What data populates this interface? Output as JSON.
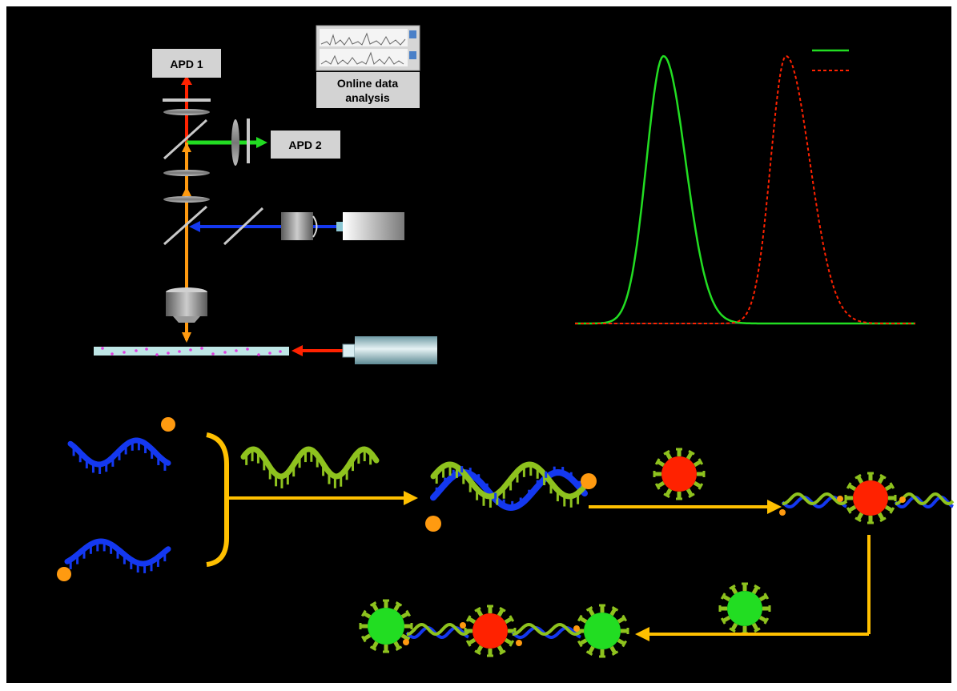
{
  "labels": {
    "apd1": "APD 1",
    "apd2": "APD 2",
    "analysis_line1": "Online data",
    "analysis_line2": "analysis"
  },
  "colors": {
    "background": "#000000",
    "green": "#22dd22",
    "red": "#ff2200",
    "blue": "#1438f0",
    "lime": "#8ec21e",
    "orange": "#ff9a10",
    "yellow_arrow": "#ffc000",
    "magenta_dots": "#e040e0"
  },
  "chart_data": {
    "type": "line",
    "title": "",
    "xlabel": "",
    "ylabel": "",
    "series": [
      {
        "style": "solid",
        "color": "#22dd22",
        "peak_fraction": 0.26,
        "peak": 1.0
      },
      {
        "style": "dashed",
        "color": "#ff2200",
        "peak_fraction": 0.62,
        "peak": 1.0
      }
    ],
    "grid": false
  }
}
